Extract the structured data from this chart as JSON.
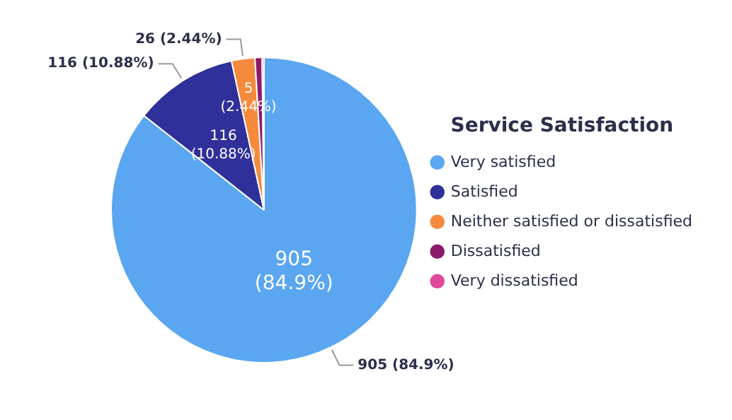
{
  "chart_data": {
    "type": "pie",
    "legend_title": "Service Satisfaction",
    "legend": "right",
    "categories": [
      "Very satisfied",
      "Satisfied",
      "Neither satisfied or dissatisfied",
      "Dissatisfied",
      "Very dissatisfied"
    ],
    "values": [
      905,
      116,
      26,
      8,
      2
    ],
    "colors": [
      "#5aa6f0",
      "#30309a",
      "#f58a3c",
      "#8c1a6c",
      "#e0489a"
    ],
    "value_labels": [
      "905 (84.9%)",
      "116 (10.88%)",
      "26 (2.44%)",
      null,
      null
    ],
    "annotations": [
      "905\n(84.9%)",
      "116\n(10.88%)",
      "5\n(2.44%)"
    ]
  }
}
